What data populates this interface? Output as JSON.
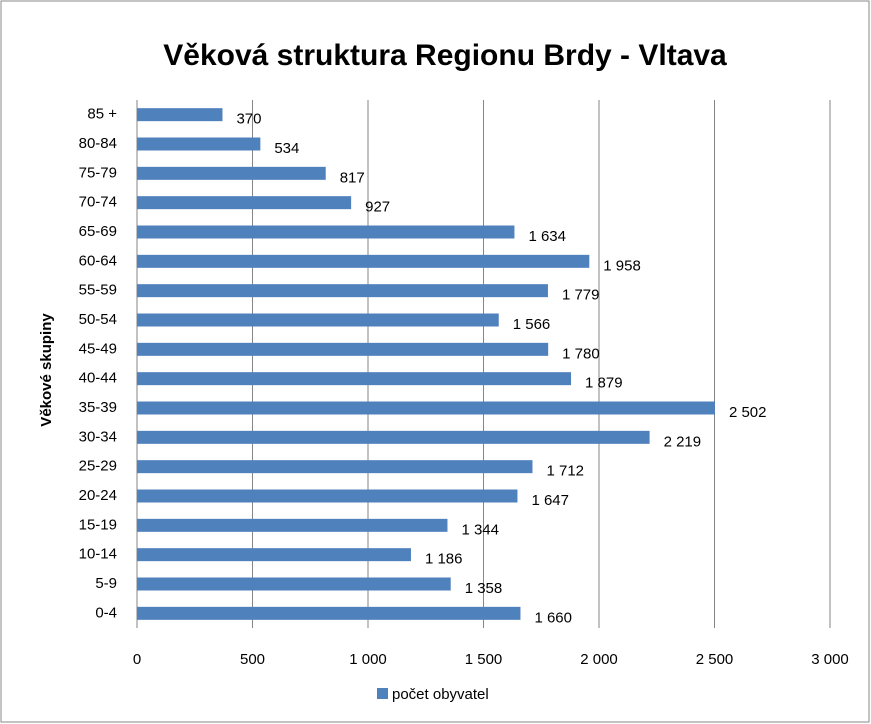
{
  "chart_data": {
    "type": "bar",
    "orientation": "horizontal",
    "title": "Věková struktura Regionu Brdy - Vltava",
    "y_label": "Věkové skupiny",
    "categories": [
      "0-4",
      "5-9",
      "10-14",
      "15-19",
      "20-24",
      "25-29",
      "30-34",
      "35-39",
      "40-44",
      "45-49",
      "50-54",
      "55-59",
      "60-64",
      "65-69",
      "70-74",
      "75-79",
      "80-84",
      "85 +"
    ],
    "series": [
      {
        "name": "počet obyvatel",
        "color": "#4f81bd",
        "values": [
          1660,
          1358,
          1186,
          1344,
          1647,
          1712,
          2219,
          2502,
          1879,
          1780,
          1566,
          1779,
          1958,
          1634,
          927,
          817,
          534,
          370
        ],
        "value_labels": [
          "1 660",
          "1 358",
          "1 186",
          "1 344",
          "1 647",
          "1 712",
          "2 219",
          "2 502",
          "1 879",
          "1 780",
          "1 566",
          "1 779",
          "1 958",
          "1 634",
          "927",
          "817",
          "534",
          "370"
        ]
      }
    ],
    "xlim": [
      0,
      3000
    ],
    "xticks": [
      0,
      500,
      {
        "value": 1000,
        "label": "1 000"
      },
      {
        "value": 1500,
        "label": "1 500"
      },
      {
        "value": 2000,
        "label": "2 000"
      },
      {
        "value": 2500,
        "label": "2 500"
      },
      {
        "value": 3000,
        "label": "3 000"
      }
    ],
    "grid": true,
    "legend": "bottom"
  }
}
